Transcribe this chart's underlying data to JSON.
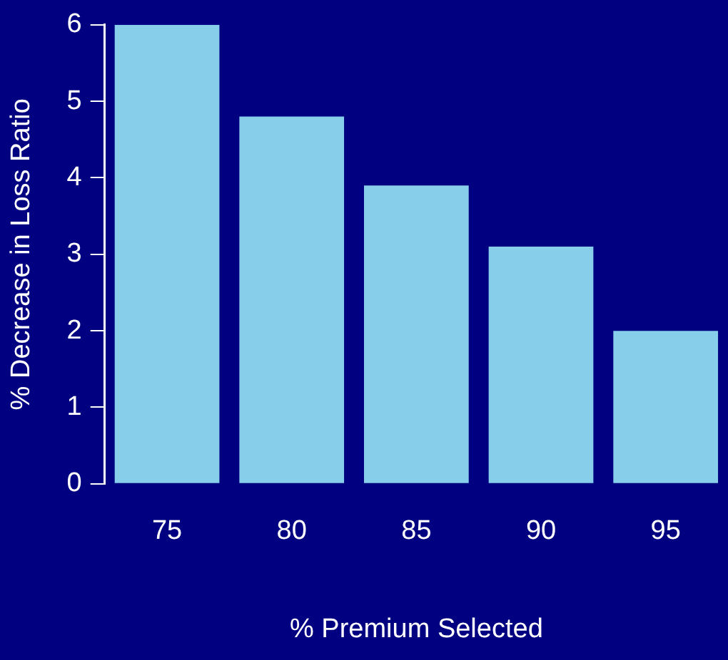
{
  "chart_data": {
    "type": "bar",
    "xlabel": "% Premium Selected",
    "ylabel": "% Decrease in Loss Ratio",
    "categories": [
      "75",
      "80",
      "85",
      "90",
      "95"
    ],
    "values": [
      6.0,
      4.8,
      3.9,
      3.1,
      2.0
    ],
    "color": "#87ceeb",
    "ylim": [
      0,
      6
    ],
    "yticks": [
      0,
      1,
      2,
      3,
      4,
      5,
      6
    ],
    "grid": false,
    "legend": false
  }
}
